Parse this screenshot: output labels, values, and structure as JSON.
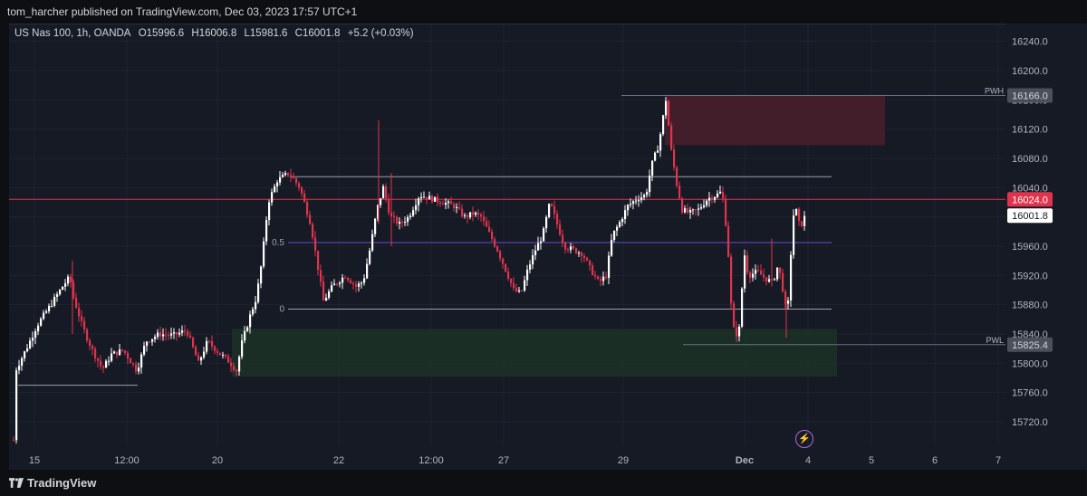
{
  "header": {
    "publisher_text": "tom_harcher published on TradingView.com, Dec 03, 2023 17:57 UTC+1"
  },
  "legend": {
    "symbol": "US Nas 100, 1h, OANDA",
    "open": "O15996.6",
    "high": "H16006.8",
    "low": "L15981.6",
    "close": "C16001.8",
    "change": "+5.2 (+0.03%)"
  },
  "footer": {
    "brand": "TradingView"
  },
  "colors": {
    "background": "#161a25",
    "bull": "#ffffff",
    "bear": "#e0344d",
    "supply_zone": "#4a1f2b",
    "demand_zone": "#1c3326",
    "fib_mid_line": "#6f4bd8",
    "level_line": "#e0344d",
    "icon_accent": "#b06ad9"
  },
  "icons": {
    "flash": "lightning-icon",
    "logo": "tradingview-logo-icon"
  },
  "chart_data": {
    "type": "candlestick",
    "y_axis_ticks": [
      15720.0,
      15760.0,
      15800.0,
      15840.0,
      15880.0,
      15920.0,
      15960.0,
      16000.0,
      16040.0,
      16080.0,
      16120.0,
      16160.0,
      16200.0,
      16240.0
    ],
    "ylim": [
      15695,
      16266
    ],
    "x_axis_ticks": [
      "15",
      "12:00",
      "20",
      "22",
      "12:00",
      "27",
      "29",
      "Dec",
      "4",
      "5",
      "6",
      "7"
    ],
    "price_labels": [
      {
        "label": "PWH",
        "value": "16166.0"
      },
      {
        "label": "",
        "value": "16024.0"
      },
      {
        "label": "",
        "value": "16001.8"
      },
      {
        "label": "PWL",
        "value": "15825.4"
      }
    ],
    "levels": [
      {
        "name": "PWH",
        "price": 16166.0
      },
      {
        "name": "PWL",
        "price": 15825.4
      },
      {
        "name": "resistance",
        "price": 16024.0
      },
      {
        "name": "range-high",
        "price": 16055.0
      },
      {
        "name": "fib-0.5",
        "price": 15965.0,
        "label": "0.5"
      },
      {
        "name": "fib-0",
        "price": 15874.0,
        "label": "0"
      },
      {
        "name": "range-low",
        "price": 15770.0
      }
    ],
    "zones": [
      {
        "name": "supply-zone",
        "top": 16166.0,
        "bottom": 16098.0
      },
      {
        "name": "demand-zone",
        "top": 15847.0,
        "bottom": 15782.0
      }
    ],
    "key_points": [
      [
        14,
        15695
      ],
      [
        16,
        15790
      ],
      [
        30,
        15825
      ],
      [
        40,
        15852
      ],
      [
        55,
        15880
      ],
      [
        68,
        15905
      ],
      [
        76,
        15918
      ],
      [
        80,
        15890
      ],
      [
        90,
        15850
      ],
      [
        100,
        15820
      ],
      [
        112,
        15792
      ],
      [
        122,
        15812
      ],
      [
        135,
        15818
      ],
      [
        150,
        15790
      ],
      [
        160,
        15830
      ],
      [
        175,
        15840
      ],
      [
        190,
        15838
      ],
      [
        205,
        15845
      ],
      [
        218,
        15800
      ],
      [
        228,
        15830
      ],
      [
        240,
        15815
      ],
      [
        252,
        15802
      ],
      [
        260,
        15790
      ],
      [
        266,
        15828
      ],
      [
        275,
        15865
      ],
      [
        282,
        15890
      ],
      [
        288,
        15940
      ],
      [
        295,
        16020
      ],
      [
        305,
        16050
      ],
      [
        318,
        16060
      ],
      [
        330,
        16040
      ],
      [
        342,
        15990
      ],
      [
        350,
        15930
      ],
      [
        356,
        15885
      ],
      [
        366,
        15905
      ],
      [
        380,
        15920
      ],
      [
        392,
        15905
      ],
      [
        400,
        15912
      ],
      [
        408,
        15960
      ],
      [
        415,
        16010
      ],
      [
        422,
        16040
      ],
      [
        430,
        16000
      ],
      [
        440,
        15990
      ],
      [
        450,
        16000
      ],
      [
        462,
        16030
      ],
      [
        475,
        16025
      ],
      [
        488,
        16020
      ],
      [
        500,
        16015
      ],
      [
        512,
        16000
      ],
      [
        522,
        16005
      ],
      [
        530,
        16000
      ],
      [
        540,
        15975
      ],
      [
        548,
        15955
      ],
      [
        558,
        15925
      ],
      [
        566,
        15900
      ],
      [
        574,
        15895
      ],
      [
        582,
        15930
      ],
      [
        590,
        15955
      ],
      [
        598,
        15975
      ],
      [
        606,
        16020
      ],
      [
        614,
        15990
      ],
      [
        622,
        15960
      ],
      [
        632,
        15955
      ],
      [
        642,
        15950
      ],
      [
        650,
        15930
      ],
      [
        660,
        15910
      ],
      [
        668,
        15920
      ],
      [
        675,
        15975
      ],
      [
        682,
        15990
      ],
      [
        692,
        16015
      ],
      [
        702,
        16025
      ],
      [
        712,
        16030
      ],
      [
        718,
        16070
      ],
      [
        726,
        16098
      ],
      [
        734,
        16160
      ],
      [
        740,
        16090
      ],
      [
        746,
        16045
      ],
      [
        752,
        16010
      ],
      [
        760,
        16005
      ],
      [
        770,
        16010
      ],
      [
        780,
        16025
      ],
      [
        790,
        16030
      ],
      [
        796,
        16035
      ],
      [
        802,
        15970
      ],
      [
        806,
        15880
      ],
      [
        810,
        15835
      ],
      [
        816,
        15850
      ],
      [
        820,
        15955
      ],
      [
        825,
        15920
      ],
      [
        835,
        15925
      ],
      [
        845,
        15915
      ],
      [
        852,
        15910
      ],
      [
        858,
        15935
      ],
      [
        864,
        15895
      ],
      [
        868,
        15860
      ],
      [
        872,
        15950
      ],
      [
        876,
        16020
      ],
      [
        882,
        15985
      ],
      [
        888,
        16002
      ]
    ]
  }
}
